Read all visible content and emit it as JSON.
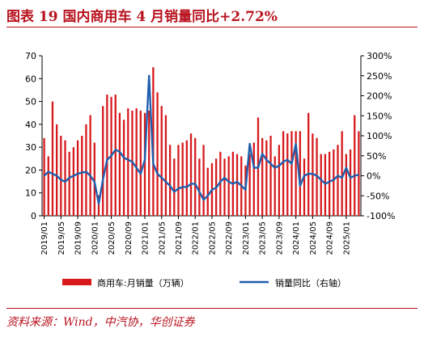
{
  "title": "图表 19 国内商用车 4 月销量同比+2.72%",
  "source": "资料来源：Wind，中汽协，华创证券",
  "colors": {
    "bar": "#d7191c",
    "line": "#1f5fad",
    "title": "#b8121e",
    "axis": "#000000"
  },
  "chart_data": {
    "type": "bar",
    "left_axis": {
      "ylim": [
        0,
        70
      ],
      "ticks": [
        "0",
        "10",
        "20",
        "30",
        "40",
        "50",
        "60",
        "70"
      ]
    },
    "right_axis": {
      "ylim": [
        -100,
        300
      ],
      "ticks": [
        "-100%",
        "-50%",
        "0%",
        "50%",
        "100%",
        "150%",
        "200%",
        "250%",
        "300%"
      ]
    },
    "x_tick_labels": [
      "2019/01",
      "2019/05",
      "2019/09",
      "2020/01",
      "2020/05",
      "2020/09",
      "2021/01",
      "2021/05",
      "2021/09",
      "2022/01",
      "2022/05",
      "2022/09",
      "2023/01",
      "2023/05",
      "2023/09",
      "2024/01",
      "2024/05",
      "2024/09",
      "2025/01"
    ],
    "legend": [
      "商用车:月销量（万辆）",
      "销量同比（右轴）"
    ],
    "legend_position": "bottom",
    "categories": [
      "2019/01",
      "2019/02",
      "2019/03",
      "2019/04",
      "2019/05",
      "2019/06",
      "2019/07",
      "2019/08",
      "2019/09",
      "2019/10",
      "2019/11",
      "2019/12",
      "2020/01",
      "2020/02",
      "2020/03",
      "2020/04",
      "2020/05",
      "2020/06",
      "2020/07",
      "2020/08",
      "2020/09",
      "2020/10",
      "2020/11",
      "2020/12",
      "2021/01",
      "2021/02",
      "2021/03",
      "2021/04",
      "2021/05",
      "2021/06",
      "2021/07",
      "2021/08",
      "2021/09",
      "2021/10",
      "2021/11",
      "2021/12",
      "2022/01",
      "2022/02",
      "2022/03",
      "2022/04",
      "2022/05",
      "2022/06",
      "2022/07",
      "2022/08",
      "2022/09",
      "2022/10",
      "2022/11",
      "2022/12",
      "2023/01",
      "2023/02",
      "2023/03",
      "2023/04",
      "2023/05",
      "2023/06",
      "2023/07",
      "2023/08",
      "2023/09",
      "2023/10",
      "2023/11",
      "2023/12",
      "2024/01",
      "2024/02",
      "2024/03",
      "2024/04",
      "2024/05",
      "2024/06",
      "2024/07",
      "2024/08",
      "2024/09",
      "2024/10",
      "2024/11",
      "2024/12",
      "2025/01",
      "2025/02",
      "2025/03",
      "2025/04"
    ],
    "series": [
      {
        "name": "商用车:月销量（万辆）",
        "type": "bar",
        "axis": "left",
        "values": [
          34,
          26,
          50,
          40,
          35,
          33,
          28,
          30,
          33,
          35,
          40,
          44,
          32,
          9,
          48,
          53,
          52,
          53,
          45,
          42,
          47,
          46,
          47,
          46,
          45,
          46,
          65,
          54,
          48,
          44,
          31,
          25,
          31,
          32,
          33,
          36,
          34,
          25,
          31,
          21,
          23,
          25,
          28,
          25,
          26,
          28,
          27,
          26,
          22,
          27,
          32,
          43,
          34,
          33,
          35,
          26,
          31,
          37,
          36,
          37,
          37,
          37,
          25,
          45,
          36,
          34,
          27,
          27,
          28,
          29,
          31,
          37,
          27,
          29,
          44,
          37
        ]
      },
      {
        "name": "销量同比（右轴）",
        "type": "line",
        "axis": "right",
        "values": [
          0,
          10,
          5,
          0,
          -10,
          -15,
          -5,
          0,
          5,
          8,
          10,
          0,
          -15,
          -70,
          -10,
          40,
          50,
          65,
          60,
          45,
          40,
          35,
          20,
          5,
          40,
          250,
          30,
          5,
          -5,
          -15,
          -25,
          -40,
          -32,
          -28,
          -28,
          -20,
          -20,
          -40,
          -60,
          -50,
          -35,
          -30,
          -15,
          -5,
          -15,
          -20,
          -15,
          -25,
          -35,
          80,
          20,
          20,
          55,
          40,
          30,
          20,
          25,
          35,
          40,
          30,
          80,
          -25,
          0,
          5,
          5,
          0,
          -10,
          -20,
          -15,
          -10,
          0,
          -5,
          20,
          -5,
          0,
          2.72
        ]
      }
    ]
  }
}
